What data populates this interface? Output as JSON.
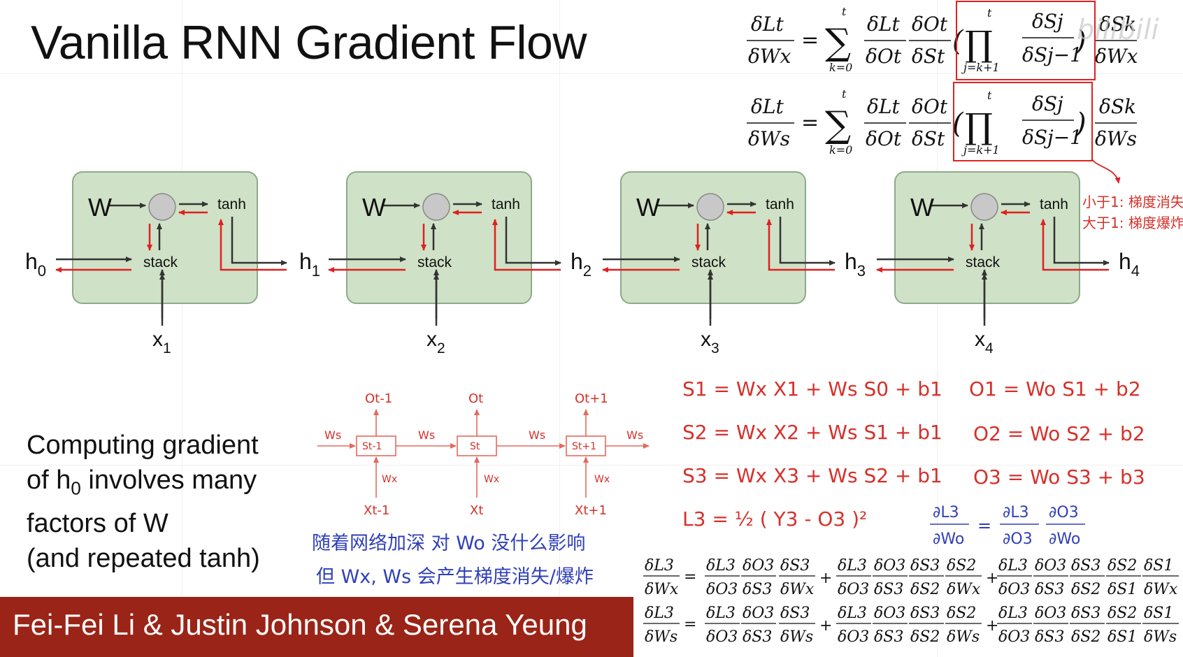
{
  "title": "Vanilla RNN Gradient Flow",
  "cells": [
    {
      "x_input": "x",
      "x_sub": "1",
      "h_left": "h",
      "h_left_sub": "0"
    },
    {
      "x_input": "x",
      "x_sub": "2",
      "h_left": "h",
      "h_left_sub": "1"
    },
    {
      "x_input": "x",
      "x_sub": "3",
      "h_left": "h",
      "h_left_sub": "2"
    },
    {
      "x_input": "x",
      "x_sub": "4",
      "h_left": "h",
      "h_left_sub": "3"
    }
  ],
  "h_final": {
    "label": "h",
    "sub": "4"
  },
  "cell_labels": {
    "w": "W",
    "tanh": "tanh",
    "stack": "stack"
  },
  "caption": {
    "line1": "Computing gradient",
    "line2_pre": "of h",
    "line2_sub": "0",
    "line2_post": " involves many",
    "line3": "factors of W",
    "line4": "(and repeated tanh)"
  },
  "footer": "Fei-Fei Li & Justin Johnson & Serena Yeung",
  "watermark": "bilibili",
  "side_notes": [
    "小于1: 梯度消失",
    "大于1: 梯度爆炸"
  ],
  "blue_notes": [
    "随着网络加深  对 Wo 没什么影响",
    "但 Wx, Ws 会产生梯度消失/爆炸"
  ],
  "unrolled": {
    "states": [
      "St-1",
      "St",
      "St+1"
    ],
    "outputs": [
      "Ot-1",
      "Ot",
      "Ot+1"
    ],
    "inputs": [
      "Xt-1",
      "Xt",
      "Xt+1"
    ],
    "ws": "Ws",
    "wx": "Wx"
  },
  "equations_red": [
    "S1 = Wx X1 + Ws S0 + b1",
    "S2 = Wx X2 + Ws S1 + b1",
    "S3 = Wx X3 + Ws S2 + b1",
    "L3 = ½ ( Y3 - O3 )²",
    "O1 = Wo S1 + b2",
    "O2 = Wo S2 + b2",
    "O3 = Wo S3 + b3"
  ],
  "partial_blue": {
    "lhs_num": "∂L3",
    "lhs_den": "∂Wo",
    "t1_num": "∂L3",
    "t1_den": "∂O3",
    "t2_num": "∂O3",
    "t2_den": "∂Wo"
  },
  "top_formula": {
    "rows": [
      {
        "lhs_num": "δLt",
        "lhs_den": "δWx",
        "last_num": "δSk",
        "last_den": "δWx"
      },
      {
        "lhs_num": "δLt",
        "lhs_den": "δWs",
        "last_num": "δSk",
        "last_den": "δWs"
      }
    ],
    "sum_top": "t",
    "sum_bottom": "k=0",
    "f1_num": "δLt",
    "f1_den": "δOt",
    "f2_num": "δOt",
    "f2_den": "δSt",
    "prod_top": "t",
    "prod_bottom": "j=k+1",
    "p_num": "δSj",
    "p_den": "δSj−1"
  },
  "bottom_formula": {
    "rows": [
      {
        "lhs_num": "δL3",
        "lhs_den": "δWx",
        "w": "δWx"
      },
      {
        "lhs_num": "δL3",
        "lhs_den": "δWs",
        "w": "δWs"
      }
    ],
    "a_num": "δL3",
    "a_den": "δO3",
    "b_num": "δO3",
    "b_den": "δS3",
    "c_num": "δS3",
    "c_den_s2": "δS2",
    "d_num": "δS2",
    "d_den": "δS1",
    "s3": "δS3",
    "s2": "δS2",
    "s1": "δS1"
  }
}
